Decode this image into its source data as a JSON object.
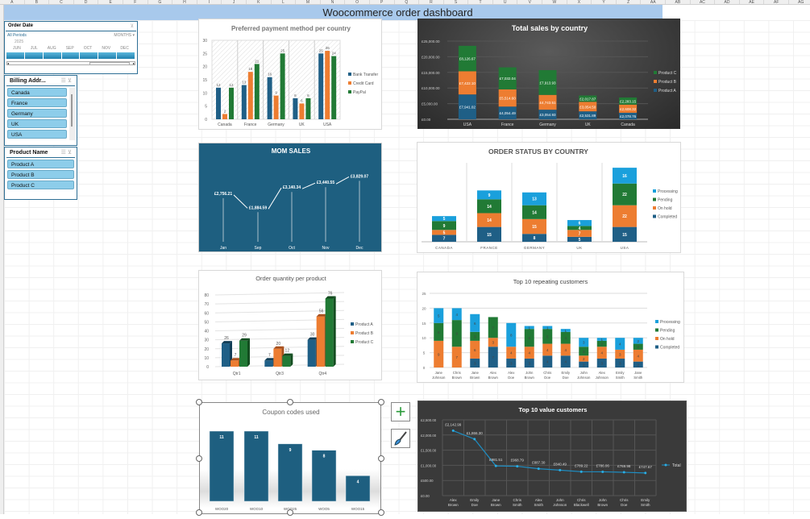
{
  "sheet": {
    "columns": [
      "A",
      "B",
      "C",
      "D",
      "E",
      "F",
      "G",
      "H",
      "I",
      "J",
      "K",
      "L",
      "M",
      "N",
      "O",
      "P",
      "Q",
      "R",
      "S",
      "T",
      "U",
      "V",
      "W",
      "X",
      "Y",
      "Z",
      "AA",
      "AB",
      "AC",
      "AD",
      "AE",
      "AF",
      "AG"
    ],
    "title": "Woocommerce order dashboard"
  },
  "timeline": {
    "title": "Order Date",
    "all_periods": "All Periods",
    "level": "MONTHS",
    "year": "2025",
    "months": [
      "JUN",
      "JUL",
      "AUG",
      "SEP",
      "OCT",
      "NOV",
      "DEC"
    ]
  },
  "slicer_billing": {
    "title": "Billing Addr...",
    "items": [
      "Canada",
      "France",
      "Germany",
      "UK",
      "USA"
    ]
  },
  "slicer_product": {
    "title": "Product Name",
    "items": [
      "Product A",
      "Product B",
      "Product C"
    ]
  },
  "colors": {
    "blue": "#1f5f86",
    "orange": "#ed7d31",
    "green": "#217a35",
    "lightblue": "#1aa0dc",
    "dark_bg": "#3a3a3a",
    "mom_bg": "#1e5f80"
  },
  "chart_data": [
    {
      "id": "payment",
      "type": "bar",
      "title": "Preferred payment method per country",
      "categories": [
        "Canada",
        "France",
        "Germany",
        "UK",
        "USA"
      ],
      "series": [
        {
          "name": "Bank Transfer",
          "values": [
            12,
            13,
            16,
            8,
            25
          ]
        },
        {
          "name": "Credit Card",
          "values": [
            2,
            18,
            9,
            6,
            26
          ]
        },
        {
          "name": "PayPal",
          "values": [
            12,
            21,
            25,
            8,
            24
          ]
        }
      ],
      "ylim": [
        0,
        30
      ],
      "yticks": [
        0,
        5,
        10,
        15,
        20,
        25,
        30
      ],
      "legend": "right"
    },
    {
      "id": "sales",
      "type": "bar",
      "stacked": true,
      "title": "Total sales by country",
      "categories": [
        "USA",
        "France",
        "Germany",
        "UK",
        "Canada"
      ],
      "series": [
        {
          "name": "Product A",
          "values": [
            7941.02,
            4054.49,
            3054.93,
            2531.89,
            2078.76
          ],
          "labels": [
            "£7,941.02",
            "£4,054.49",
            "£3,054.93",
            "£2,531.89",
            "£2,078.76"
          ]
        },
        {
          "name": "Product B",
          "values": [
            7422.1,
            5514.6,
            4743.51,
            3054.5,
            2608.32
          ],
          "labels": [
            "£7,422.10",
            "£5,514.60",
            "£4,743.51",
            "£3,054.50",
            "£2,608.32"
          ]
        },
        {
          "name": "Product C",
          "values": [
            8126.67,
            7032.04,
            7913.93,
            2017.87,
            2283.15
          ],
          "labels": [
            "£8,126.67",
            "£7,032.04",
            "£7,913.93",
            "£2,017.87",
            "£2,283.15"
          ]
        }
      ],
      "ylim": [
        0,
        25000
      ],
      "yticks": [
        "£0.00",
        "£5,000.00",
        "£10,000.00",
        "£15,000.00",
        "£20,000.00",
        "£25,000.00"
      ],
      "legend": "right"
    },
    {
      "id": "mom",
      "type": "line",
      "title": "MOM SALES",
      "categories": [
        "Jan",
        "Sep",
        "Oct",
        "Nov",
        "Dec"
      ],
      "values": [
        2756.21,
        1884.59,
        3140.34,
        3440.55,
        3829.07
      ],
      "labels": [
        "£2,756.21",
        "£1,884.59",
        "£3,140.34",
        "£3,440.55",
        "£3,829.07"
      ]
    },
    {
      "id": "status",
      "type": "bar",
      "stacked": true,
      "title": "ORDER STATUS BY COUNTRY",
      "categories": [
        "CANADA",
        "FRANCE",
        "GERMANY",
        "UK",
        "USA"
      ],
      "series": [
        {
          "name": "Completed",
          "values": [
            7,
            15,
            8,
            5,
            15
          ]
        },
        {
          "name": "On hold",
          "values": [
            5,
            14,
            15,
            7,
            22
          ]
        },
        {
          "name": "Pending",
          "values": [
            9,
            14,
            14,
            4,
            22
          ]
        },
        {
          "name": "Processing",
          "values": [
            5,
            9,
            13,
            6,
            16
          ]
        }
      ],
      "legend": "right"
    },
    {
      "id": "qty",
      "type": "bar",
      "title": "Order quantity per product",
      "categories": [
        "Qtr1",
        "Qtr3",
        "Qtr4"
      ],
      "series": [
        {
          "name": "Product A",
          "values": [
            26,
            7,
            30
          ]
        },
        {
          "name": "Product B",
          "values": [
            7,
            20,
            56
          ]
        },
        {
          "name": "Product C",
          "values": [
            29,
            12,
            76
          ]
        }
      ],
      "ylim": [
        0,
        80
      ],
      "yticks": [
        0,
        10,
        20,
        30,
        40,
        50,
        60,
        70,
        80
      ],
      "legend": "right"
    },
    {
      "id": "repeat",
      "type": "bar",
      "stacked": true,
      "title": "Top 10 repeating customers",
      "categories": [
        "Jane Johnson",
        "Chris Brown",
        "Jane Brown",
        "Alex Brown",
        "Alex Doe",
        "John Brown",
        "Chris Doe",
        "Emily Doe",
        "John Johnson",
        "Alex Johnson",
        "Emily Smith",
        "Jane Smith"
      ],
      "series": [
        {
          "name": "Completed",
          "values": [
            0,
            0,
            3,
            7,
            3,
            3,
            4,
            4,
            2,
            3,
            3,
            2
          ]
        },
        {
          "name": "On hold",
          "values": [
            9,
            7,
            6,
            3,
            4,
            4,
            4,
            4,
            2,
            4,
            3,
            4
          ]
        },
        {
          "name": "Pending",
          "values": [
            6,
            9,
            3,
            7,
            0,
            6,
            5,
            4,
            3,
            2,
            0,
            2
          ]
        },
        {
          "name": "Processing",
          "values": [
            5,
            4,
            6,
            0,
            8,
            1,
            1,
            1,
            3,
            1,
            4,
            2
          ]
        }
      ],
      "ylim": [
        0,
        25
      ],
      "yticks": [
        0,
        5,
        10,
        15,
        20,
        25
      ],
      "legend": "right"
    },
    {
      "id": "coupon",
      "type": "bar",
      "title": "Coupon codes used",
      "categories": [
        "WOO20",
        "WOO10",
        "WOO25",
        "WOO5",
        "WOO15"
      ],
      "values": [
        11,
        11,
        9,
        8,
        4
      ]
    },
    {
      "id": "value",
      "type": "line",
      "title": "Top 10 value customers",
      "categories": [
        "Alex Brown",
        "Emily Doe",
        "Jane Brown",
        "Chris Smith",
        "Alex Smith",
        "John Johnson",
        "Chris Blackwell",
        "John Brown",
        "Chris Doe",
        "Emily Smith"
      ],
      "values": [
        2142.99,
        1866.3,
        981.51,
        968.79,
        887.3,
        840.49,
        789.22,
        786.06,
        769.98,
        747.67
      ],
      "labels": [
        "£2,142.99",
        "£1,866.30",
        "£981.51",
        "£968.79",
        "£887.30",
        "£840.49",
        "£789.22",
        "£786.06",
        "£769.98",
        "£747.67"
      ],
      "ylim": [
        0,
        2500
      ],
      "yticks": [
        "£0.00",
        "£500.00",
        "£1,000.00",
        "£1,500.00",
        "£2,000.00",
        "£2,500.00"
      ],
      "legend": "right",
      "series_name": "Total"
    }
  ]
}
